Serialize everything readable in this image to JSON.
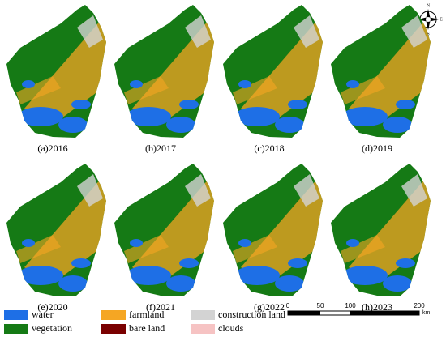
{
  "panels": [
    {
      "label": "(a)2016"
    },
    {
      "label": "(b)2017"
    },
    {
      "label": "(c)2018"
    },
    {
      "label": "(d)2019"
    },
    {
      "label": "(e)2020"
    },
    {
      "label": "(f)2021"
    },
    {
      "label": "(g)2022"
    },
    {
      "label": "(h)2023"
    }
  ],
  "legend": [
    {
      "name": "water",
      "color": "#1e6fe6"
    },
    {
      "name": "vegetation",
      "color": "#157a15"
    },
    {
      "name": "farmland",
      "color": "#f5a623"
    },
    {
      "name": "bare land",
      "color": "#7a0000"
    },
    {
      "name": "construction land",
      "color": "#d3d3d3"
    },
    {
      "name": "clouds",
      "color": "#f6c3c3"
    }
  ],
  "scale_bar": {
    "labels": [
      "0",
      "50",
      "100",
      "200"
    ],
    "unit": "km"
  },
  "compass": {
    "n": "N",
    "e": "E",
    "s": "S",
    "w": "W"
  }
}
